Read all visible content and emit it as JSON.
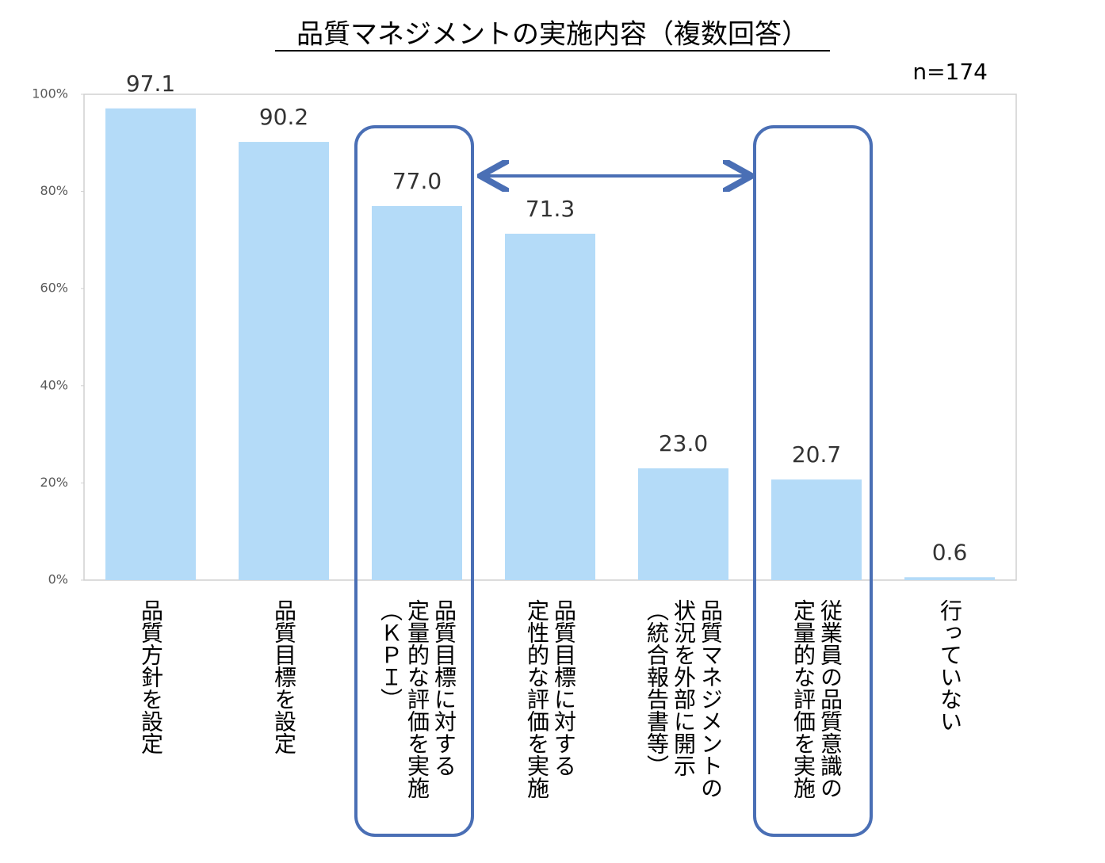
{
  "chart_data": {
    "type": "bar",
    "title": "品質マネジメントの実施内容（複数回答）",
    "annotation": "n=174",
    "categories": [
      "品質方針を設定",
      "品質目標を設定",
      "品質目標に対する\n定量的な評価を実施\n（ＫＰＩ）",
      "品質目標に対する\n定性的な評価を実施",
      "品質マネジメントの\n状況を外部に開示\n（統合報告書等）",
      "従業員の品質意識の\n定量的な評価を実施",
      "行っていない"
    ],
    "values": [
      97.1,
      90.2,
      77.0,
      71.3,
      23.0,
      20.7,
      0.6
    ],
    "value_labels": [
      "97.1",
      "90.2",
      "77.0",
      "71.3",
      "23.0",
      "20.7",
      "0.6"
    ],
    "color": "#b4dbf8",
    "ylim": [
      0,
      100
    ],
    "yticks": [
      {
        "value": 0,
        "label": "0%"
      },
      {
        "value": 20,
        "label": "20%"
      },
      {
        "value": 40,
        "label": "40%"
      },
      {
        "value": 60,
        "label": "60%"
      },
      {
        "value": 80,
        "label": "80%"
      },
      {
        "value": 100,
        "label": "100%"
      }
    ],
    "grid": false
  }
}
